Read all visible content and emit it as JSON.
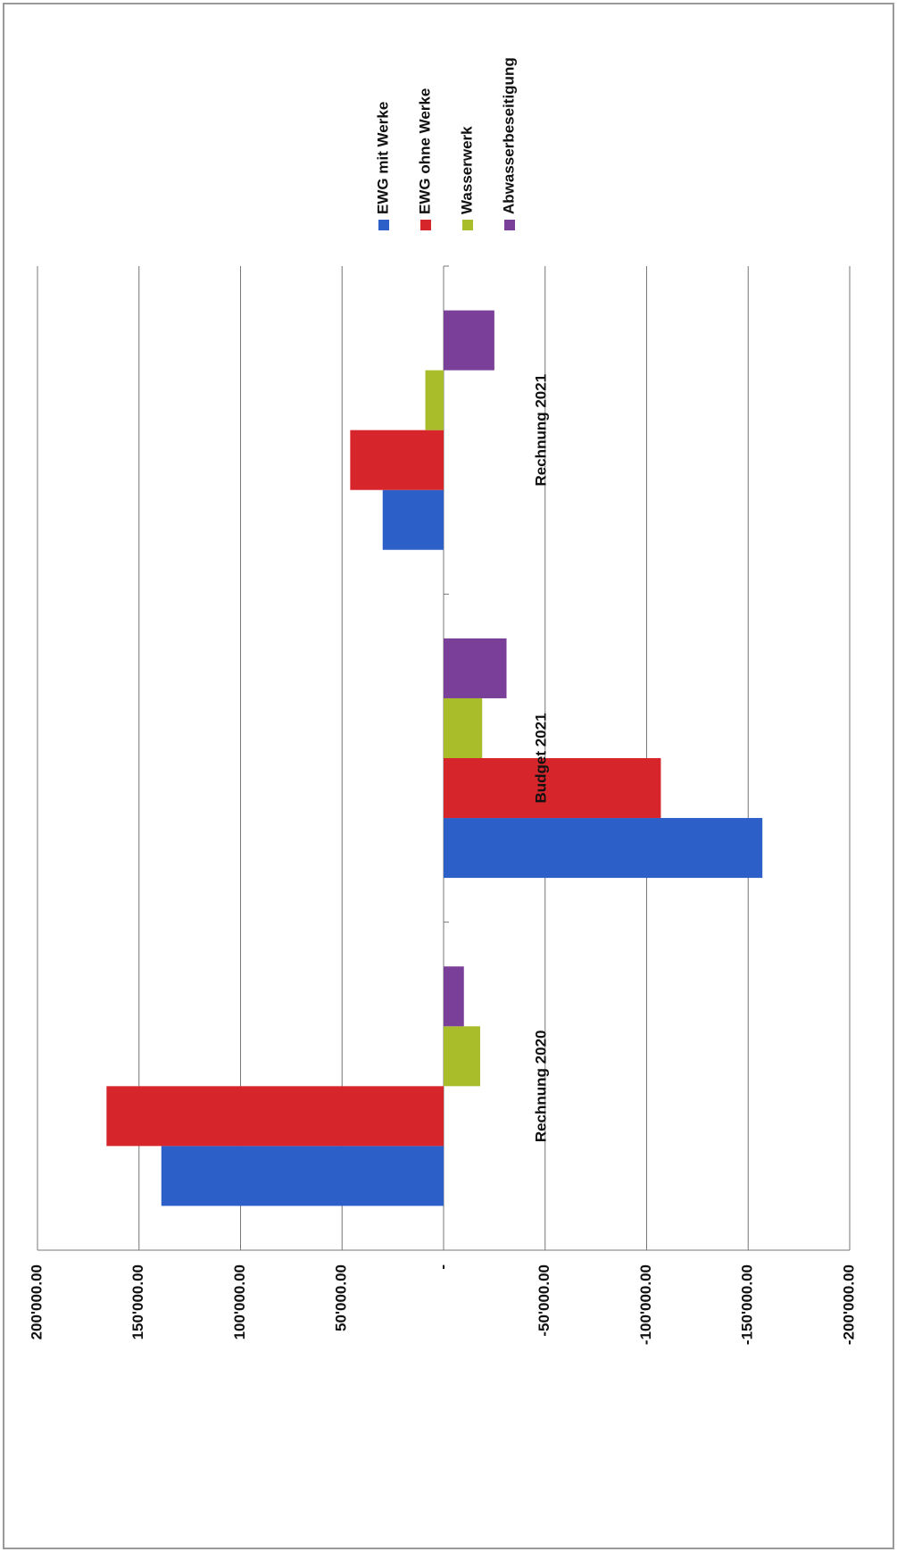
{
  "chart_data": {
    "type": "bar",
    "categories": [
      "Rechnung 2020",
      "Budget 2021",
      "Rechnung 2021"
    ],
    "series": [
      {
        "name": "EWG mit Werke",
        "color": "#2d5fc8",
        "values": [
          139000,
          -157000,
          30000
        ]
      },
      {
        "name": "EWG ohne Werke",
        "color": "#d6262b",
        "values": [
          166000,
          -107000,
          46000
        ]
      },
      {
        "name": "Wasserwerk",
        "color": "#a9bd2b",
        "values": [
          -18000,
          -19000,
          9000
        ]
      },
      {
        "name": "Abwasserbeseitigung",
        "color": "#7a3f98",
        "values": [
          -10000,
          -31000,
          -25000
        ]
      }
    ],
    "ylim": [
      -200000,
      200000
    ],
    "yticks": [
      {
        "value": -200000,
        "label": "-200'000.00"
      },
      {
        "value": -150000,
        "label": "-150'000.00"
      },
      {
        "value": -100000,
        "label": "-100'000.00"
      },
      {
        "value": -50000,
        "label": "-50'000.00"
      },
      {
        "value": 0,
        "label": "-"
      },
      {
        "value": 50000,
        "label": "50'000.00"
      },
      {
        "value": 100000,
        "label": "100'000.00"
      },
      {
        "value": 150000,
        "label": "150'000.00"
      },
      {
        "value": 200000,
        "label": "200'000.00"
      }
    ],
    "grid": true,
    "legend": "right"
  }
}
